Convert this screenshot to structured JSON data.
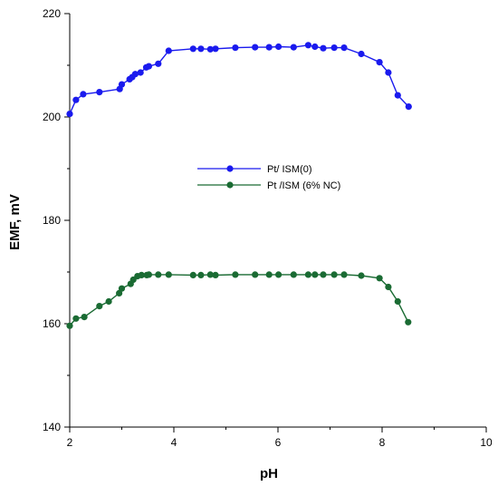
{
  "chart_data": {
    "type": "line",
    "title": "",
    "xlabel": "pH",
    "ylabel": "EMF, mV",
    "xlim": [
      2,
      10
    ],
    "ylim": [
      140,
      220
    ],
    "xticks": [
      2,
      4,
      6,
      8,
      10
    ],
    "yticks": [
      140,
      160,
      180,
      200,
      220
    ],
    "grid": false,
    "legend_position": "center",
    "series": [
      {
        "name": "Pt/ ISM(0)",
        "color": "#1a1aee",
        "marker": "circle",
        "x": [
          2.0,
          2.12,
          2.26,
          2.57,
          2.96,
          3.0,
          3.15,
          3.2,
          3.26,
          3.36,
          3.47,
          3.52,
          3.7,
          3.9,
          4.37,
          4.52,
          4.7,
          4.8,
          5.18,
          5.56,
          5.83,
          6.01,
          6.3,
          6.58,
          6.71,
          6.87,
          7.08,
          7.27,
          7.6,
          7.95,
          8.12,
          8.3,
          8.51
        ],
        "y": [
          200.6,
          203.3,
          204.4,
          204.8,
          205.4,
          206.3,
          207.3,
          207.7,
          208.3,
          208.6,
          209.6,
          209.8,
          210.3,
          212.8,
          213.2,
          213.2,
          213.1,
          213.2,
          213.4,
          213.5,
          213.5,
          213.6,
          213.5,
          213.9,
          213.6,
          213.3,
          213.4,
          213.4,
          212.2,
          210.6,
          208.6,
          204.2,
          202.0
        ]
      },
      {
        "name": "Pt /ISM (6% NC)",
        "color": "#1a6b33",
        "marker": "circle",
        "x": [
          2.0,
          2.12,
          2.28,
          2.57,
          2.75,
          2.95,
          3.0,
          3.17,
          3.22,
          3.3,
          3.38,
          3.48,
          3.52,
          3.7,
          3.9,
          4.37,
          4.52,
          4.7,
          4.8,
          5.18,
          5.56,
          5.83,
          6.01,
          6.3,
          6.58,
          6.71,
          6.87,
          7.08,
          7.27,
          7.6,
          7.95,
          8.12,
          8.3,
          8.5
        ],
        "y": [
          159.6,
          161.0,
          161.3,
          163.4,
          164.3,
          165.9,
          166.8,
          167.7,
          168.5,
          169.2,
          169.4,
          169.4,
          169.5,
          169.5,
          169.5,
          169.4,
          169.4,
          169.5,
          169.4,
          169.5,
          169.5,
          169.5,
          169.5,
          169.5,
          169.5,
          169.5,
          169.5,
          169.5,
          169.5,
          169.3,
          168.8,
          167.1,
          164.3,
          160.3
        ]
      }
    ]
  }
}
